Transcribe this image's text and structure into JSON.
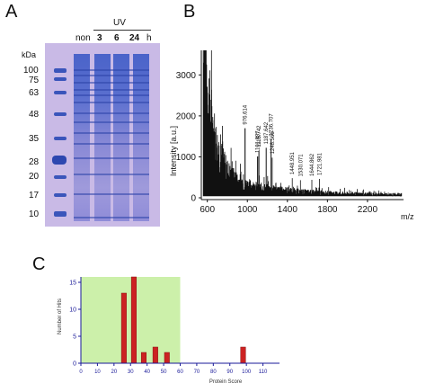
{
  "panel_a": {
    "letter": "A",
    "uv_label": "UV",
    "kda_label": "kDa",
    "lanes": [
      "non",
      "3",
      "6",
      "24"
    ],
    "time_unit": "h",
    "markers": [
      "100",
      "75",
      "63",
      "48",
      "35",
      "28",
      "20",
      "17",
      "10"
    ],
    "colors": {
      "gel": "#c7b7e4",
      "band": "#3550b7"
    }
  },
  "panel_b": {
    "letter": "B",
    "chart_data": {
      "type": "line",
      "ylabel": "Intensity [a.u.]",
      "xlabel": "m/z",
      "xlim": [
        540,
        2560
      ],
      "ylim": [
        0,
        3600
      ],
      "x_ticks": [
        600,
        1000,
        1400,
        1800,
        2200
      ],
      "y_ticks": [
        0,
        1000,
        2000,
        3000
      ],
      "peaks": [
        {
          "mz": 976.614,
          "label": "976.614",
          "intensity": 1700
        },
        {
          "mz": 1101.887,
          "label": "1101.887",
          "intensity": 1010
        },
        {
          "mz": 1115.742,
          "label": "1115.742",
          "intensity": 1150
        },
        {
          "mz": 1187.642,
          "label": "1187.642",
          "intensity": 1220
        },
        {
          "mz": 1236.707,
          "label": "1236.707",
          "intensity": 1420
        },
        {
          "mz": 1248.566,
          "label": "1248.566",
          "intensity": 980
        },
        {
          "mz": 1448.951,
          "label": "1448.951",
          "intensity": 480
        },
        {
          "mz": 1530.071,
          "label": "1530.071",
          "intensity": 430
        },
        {
          "mz": 1644.862,
          "label": "1644.862",
          "intensity": 440
        },
        {
          "mz": 1721.981,
          "label": "1721.981",
          "intensity": 460
        }
      ]
    }
  },
  "panel_c": {
    "letter": "C",
    "chart_data": {
      "type": "bar",
      "xlabel": "Protein Score",
      "ylabel": "Number of Hits",
      "xlim": [
        0,
        120
      ],
      "ylim": [
        0,
        16
      ],
      "x_ticks": [
        0,
        10,
        20,
        30,
        40,
        50,
        60,
        70,
        80,
        90,
        100,
        110
      ],
      "y_ticks": [
        0,
        5,
        10,
        15
      ],
      "shaded_range": [
        0,
        60
      ],
      "bar_width": 3,
      "bars": [
        {
          "score": 26,
          "hits": 13
        },
        {
          "score": 32,
          "hits": 16
        },
        {
          "score": 38,
          "hits": 2
        },
        {
          "score": 45,
          "hits": 3
        },
        {
          "score": 52,
          "hits": 2
        },
        {
          "score": 98,
          "hits": 3
        }
      ],
      "colors": {
        "bar": "#cc2222",
        "shade": "#ccf0aa",
        "axis": "#1a1a99"
      }
    }
  }
}
